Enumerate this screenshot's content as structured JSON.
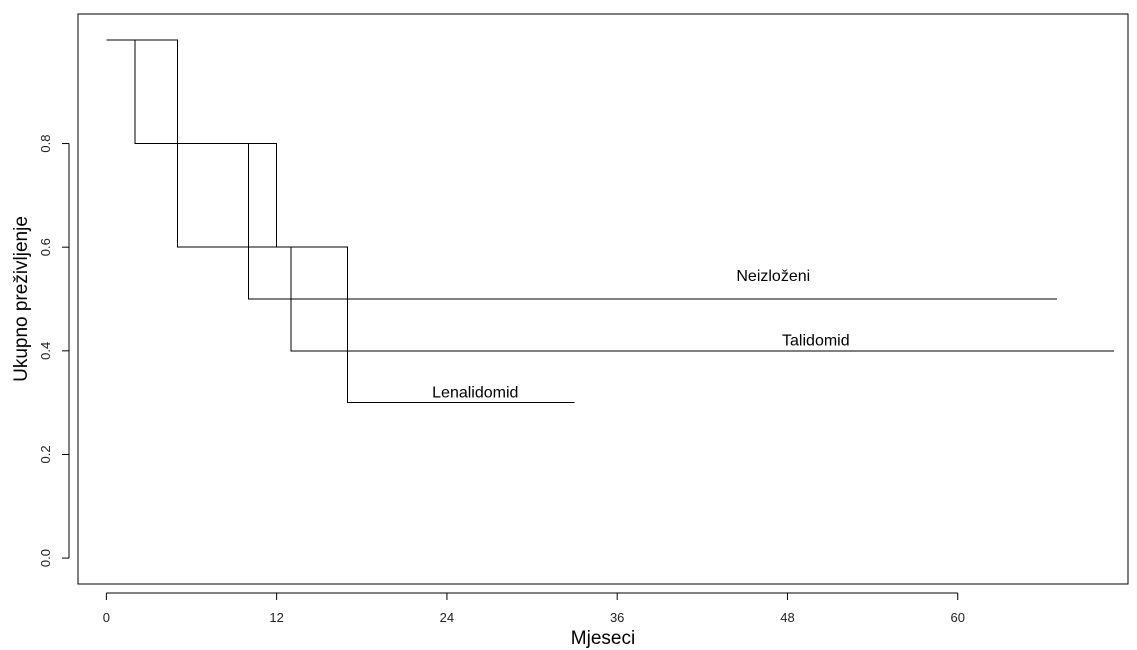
{
  "chart_data": {
    "type": "line",
    "step": true,
    "xlabel": "Mjeseci",
    "ylabel": "Ukupno preživljenje",
    "xlim": [
      -2,
      72
    ],
    "ylim": [
      -0.05,
      1.05
    ],
    "x_ticks": [
      0,
      12,
      24,
      36,
      48,
      60
    ],
    "y_ticks": [
      0.0,
      0.2,
      0.4,
      0.6,
      0.8
    ],
    "grid": false,
    "series": [
      {
        "name": "Neizloženi",
        "x": [
          0,
          5,
          10,
          67
        ],
        "y": [
          1.0,
          0.6,
          0.5,
          0.5
        ],
        "label_at": [
          47,
          0.535
        ]
      },
      {
        "name": "Talidomid",
        "x": [
          0,
          5,
          12,
          13,
          71
        ],
        "y": [
          1.0,
          0.8,
          0.6,
          0.4,
          0.4
        ],
        "label_at": [
          50,
          0.41
        ]
      },
      {
        "name": "Lenalidomid",
        "x": [
          0,
          2,
          10,
          17,
          33
        ],
        "y": [
          1.0,
          0.8,
          0.6,
          0.3,
          0.3
        ],
        "label_at": [
          26,
          0.31
        ]
      }
    ]
  }
}
